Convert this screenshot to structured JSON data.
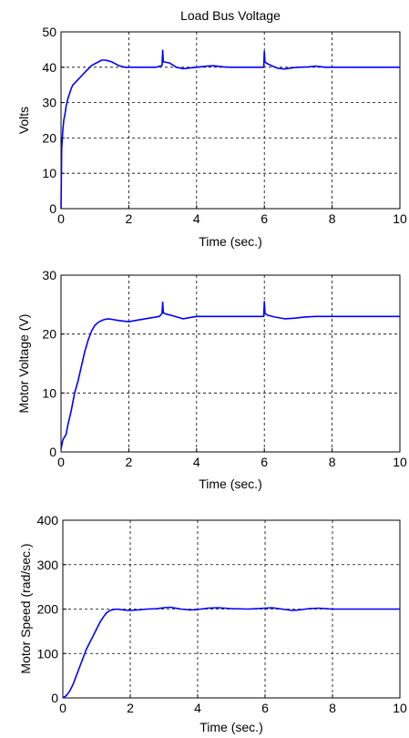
{
  "chart_data": [
    {
      "type": "line",
      "title": "Load Bus Voltage",
      "xlabel": "Time (sec.)",
      "ylabel": "Volts",
      "xlim": [
        0,
        10
      ],
      "ylim": [
        0,
        50
      ],
      "xticks": [
        "0",
        "2",
        "4",
        "6",
        "8",
        "10"
      ],
      "yticks": [
        "0",
        "10",
        "20",
        "30",
        "40",
        "50"
      ],
      "grid": true,
      "series": [
        {
          "color": "#0000ff",
          "x": [
            0,
            0.02,
            0.05,
            0.08,
            0.12,
            0.15,
            0.2,
            0.25,
            0.3,
            0.35,
            0.4,
            0.5,
            0.6,
            0.7,
            0.8,
            0.9,
            1.0,
            1.1,
            1.2,
            1.3,
            1.4,
            1.5,
            1.6,
            1.7,
            1.8,
            1.9,
            2.0,
            2.2,
            2.5,
            2.8,
            2.98,
            3.0,
            3.02,
            3.05,
            3.2,
            3.4,
            3.6,
            3.8,
            4.0,
            4.3,
            4.5,
            4.8,
            5.0,
            5.5,
            5.98,
            6.0,
            6.02,
            6.05,
            6.2,
            6.4,
            6.6,
            6.8,
            7.0,
            7.3,
            7.5,
            7.8,
            8.0,
            8.5,
            9.0,
            9.5,
            10.0
          ],
          "y": [
            0,
            17,
            22,
            25,
            27,
            29,
            31,
            32.5,
            34,
            35,
            35.5,
            36.5,
            37.5,
            38.5,
            39.5,
            40.5,
            41,
            41.5,
            42,
            42,
            41.8,
            41.5,
            41,
            40.5,
            40.2,
            40,
            40,
            40,
            40,
            40,
            40.5,
            44.8,
            41.5,
            41.5,
            41.2,
            40,
            39.6,
            39.8,
            40,
            40.3,
            40.4,
            40.1,
            40,
            40,
            40,
            44.5,
            41.5,
            41.2,
            40.5,
            39.7,
            39.5,
            39.8,
            40,
            40.1,
            40.3,
            40,
            40,
            40,
            40,
            40,
            40
          ]
        }
      ]
    },
    {
      "type": "line",
      "title": "",
      "xlabel": "Time (sec.)",
      "ylabel": "Motor Voltage (V)",
      "xlim": [
        0,
        10
      ],
      "ylim": [
        0,
        30
      ],
      "xticks": [
        "0",
        "2",
        "4",
        "6",
        "8",
        "10"
      ],
      "yticks": [
        "0",
        "10",
        "20",
        "30"
      ],
      "grid": true,
      "series": [
        {
          "color": "#0000ff",
          "x": [
            0,
            0.05,
            0.1,
            0.15,
            0.2,
            0.3,
            0.4,
            0.5,
            0.6,
            0.7,
            0.8,
            0.9,
            1.0,
            1.1,
            1.2,
            1.3,
            1.4,
            1.5,
            1.7,
            2.0,
            2.3,
            2.6,
            2.9,
            2.98,
            3.0,
            3.02,
            3.1,
            3.3,
            3.6,
            3.8,
            4.0,
            4.5,
            5.0,
            5.5,
            5.98,
            6.0,
            6.02,
            6.1,
            6.3,
            6.6,
            6.9,
            7.2,
            7.5,
            8.0,
            8.5,
            9.0,
            9.5,
            10.0
          ],
          "y": [
            0.5,
            2,
            2.5,
            3,
            4.5,
            7,
            10,
            12,
            14.5,
            17,
            19,
            20.5,
            21.5,
            22,
            22.3,
            22.5,
            22.6,
            22.5,
            22.3,
            22.1,
            22.4,
            22.7,
            23,
            23.5,
            25.4,
            23.6,
            23.4,
            23.1,
            22.6,
            22.8,
            23,
            23,
            23,
            23,
            23,
            25.5,
            23.5,
            23.2,
            22.9,
            22.6,
            22.7,
            22.9,
            23,
            23,
            23,
            23,
            23,
            23
          ]
        }
      ]
    },
    {
      "type": "line",
      "title": "",
      "xlabel": "Time (sec.)",
      "ylabel": "Motor Speed (rad/sec.)",
      "xlim": [
        0,
        10
      ],
      "ylim": [
        0,
        400
      ],
      "xticks": [
        "0",
        "2",
        "4",
        "6",
        "8",
        "10"
      ],
      "yticks": [
        "0",
        "100",
        "200",
        "300",
        "400"
      ],
      "grid": true,
      "series": [
        {
          "color": "#0000ff",
          "x": [
            0,
            0.1,
            0.2,
            0.3,
            0.4,
            0.5,
            0.6,
            0.7,
            0.8,
            0.9,
            1.0,
            1.1,
            1.2,
            1.3,
            1.4,
            1.5,
            1.6,
            1.7,
            1.8,
            2.0,
            2.2,
            2.5,
            2.8,
            3.0,
            3.2,
            3.5,
            3.8,
            4.0,
            4.3,
            4.6,
            5.0,
            5.5,
            6.0,
            6.2,
            6.5,
            6.8,
            7.0,
            7.3,
            7.6,
            8.0,
            8.5,
            9.0,
            9.5,
            10.0
          ],
          "y": [
            0,
            5,
            15,
            30,
            50,
            70,
            90,
            110,
            125,
            140,
            155,
            170,
            182,
            192,
            197,
            199,
            200,
            199,
            198,
            197,
            198,
            200,
            201,
            203,
            204,
            200,
            198,
            199,
            202,
            203,
            201,
            200,
            202,
            203,
            200,
            197,
            198,
            201,
            202,
            200,
            200,
            200,
            200,
            200
          ]
        }
      ]
    }
  ]
}
